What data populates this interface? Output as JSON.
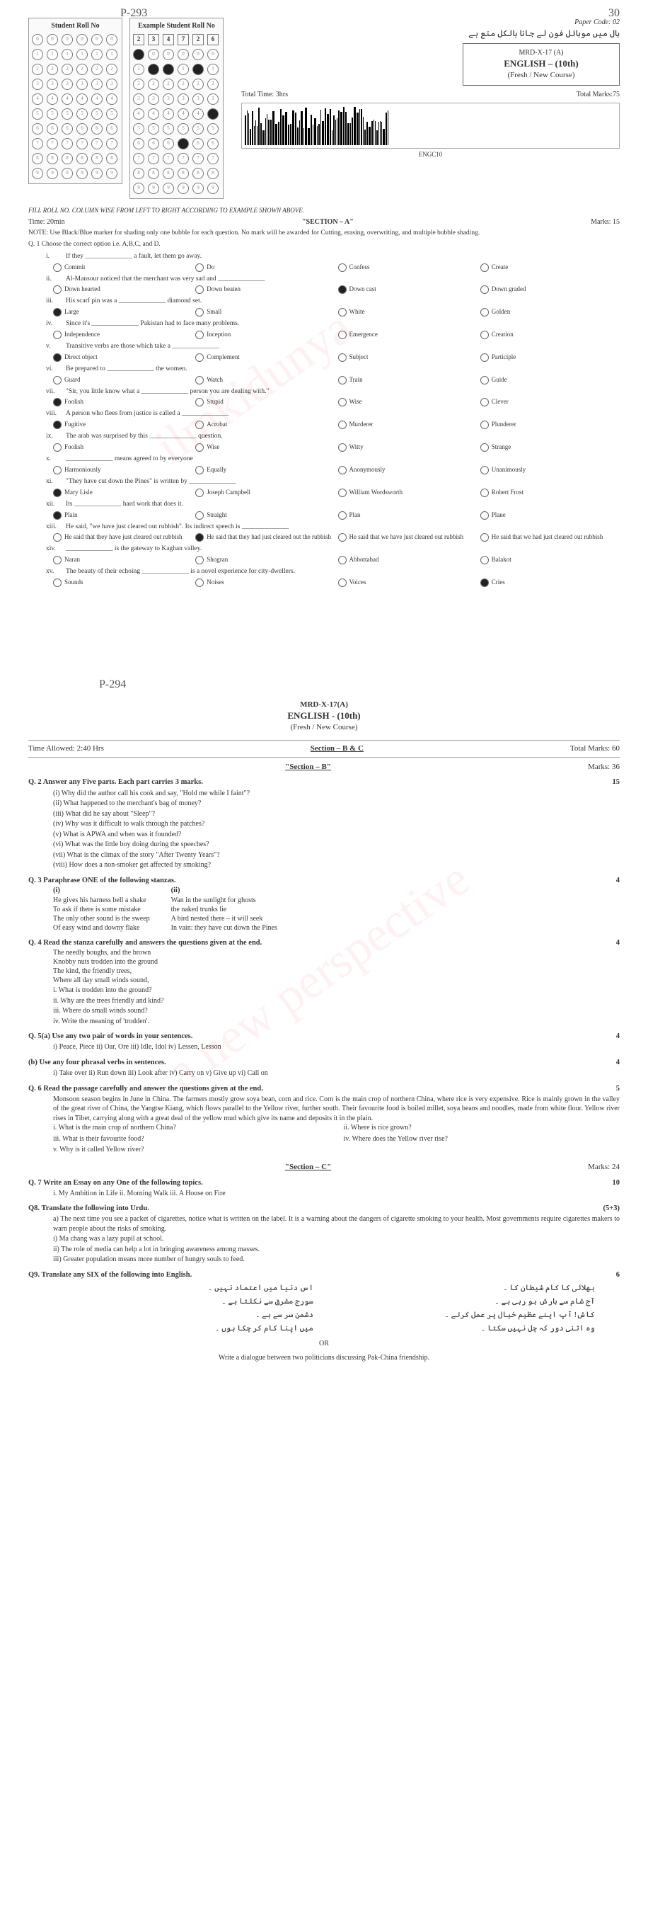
{
  "page1": {
    "p293": "P-293",
    "p30": "30",
    "student_roll_title": "Student Roll No",
    "example_roll_title": "Example Student Roll No",
    "example_nums": [
      "2",
      "3",
      "4",
      "7",
      "2",
      "6"
    ],
    "example_filled": [
      [
        1,
        0,
        0,
        0,
        0,
        0
      ],
      [
        0,
        1,
        1,
        0,
        1,
        0
      ],
      [
        0,
        0,
        0,
        0,
        0,
        0
      ],
      [
        0,
        0,
        0,
        0,
        0,
        0
      ],
      [
        0,
        0,
        0,
        0,
        0,
        1
      ],
      [
        0,
        0,
        0,
        0,
        0,
        0
      ],
      [
        0,
        0,
        0,
        1,
        0,
        0
      ],
      [
        0,
        0,
        0,
        0,
        0,
        0
      ],
      [
        0,
        0,
        0,
        0,
        0,
        0
      ],
      [
        0,
        0,
        0,
        0,
        0,
        0
      ]
    ],
    "paper_code": "Paper Code: 02",
    "urdu_top": "ہال میں موبائل فون لے جانا بالکل منع ہے",
    "mrd": "MRD-X-17 (A)",
    "subject": "ENGLISH – (10th)",
    "course": "(Fresh / New Course)",
    "total_time": "Total Time: 3hrs",
    "total_marks": "Total Marks:75",
    "barcode_label": "ENGC10",
    "fill_note": "FILL ROLL NO. COLUMN WISE FROM LEFT TO RIGHT ACCORDING TO EXAMPLE SHOWN ABOVE.",
    "time_a": "Time: 20min",
    "section_a": "\"SECTION – A\"",
    "marks_a": "Marks: 15",
    "note_text": "NOTE:   Use Black/Blue marker for shading only one bubble for each question. No mark will be awarded for Cutting, erasing, overwriting, and multiple bubble shading.",
    "q1": "Q. 1       Choose the correct option i.e. A,B,C, and D.",
    "items": [
      {
        "n": "i.",
        "t": "If they ______________ a fault, let them go away.",
        "o": [
          "Commit",
          "Do",
          "Confess",
          "Create"
        ],
        "f": -1
      },
      {
        "n": "ii.",
        "t": "Al-Mansour noticed that the merchant was very sad and ______________",
        "o": [
          "Down hearted",
          "Down beaten",
          "Down cast",
          "Down graded"
        ],
        "f": 2
      },
      {
        "n": "iii.",
        "t": "His scarf pin was a ______________ diamond set.",
        "o": [
          "Large",
          "Small",
          "White",
          "Golden"
        ],
        "f": 0
      },
      {
        "n": "iv.",
        "t": "Since it's ______________ Pakistan had to face many problems.",
        "o": [
          "Independence",
          "Inception",
          "Emergence",
          "Creation"
        ],
        "f": -1
      },
      {
        "n": "v.",
        "t": "Transitive verbs are those which take a ______________",
        "o": [
          "Direct object",
          "Complement",
          "Subject",
          "Participle"
        ],
        "f": 0
      },
      {
        "n": "vi.",
        "t": "Be prepared to ______________ the women.",
        "o": [
          "Guard",
          "Watch",
          "Train",
          "Guide"
        ],
        "f": -1
      },
      {
        "n": "vii.",
        "t": "\"Sir, you little know what a ______________ person you are dealing with.\"",
        "o": [
          "Foolish",
          "Stupid",
          "Wise",
          "Clever"
        ],
        "f": 0
      },
      {
        "n": "viii.",
        "t": "A person who flees from justice is called a ______________",
        "o": [
          "Fugitive",
          "Acrobat",
          "Murderer",
          "Plunderer"
        ],
        "f": 0
      },
      {
        "n": "ix.",
        "t": "The arab was surprised by this ______________ question.",
        "o": [
          "Foolish",
          "Wise",
          "Witty",
          "Strange"
        ],
        "f": -1
      },
      {
        "n": "x.",
        "t": "______________ means agreed to by everyone",
        "o": [
          "Harmoniously",
          "Equally",
          "Anonymously",
          "Unanimously"
        ],
        "f": -1
      },
      {
        "n": "xi.",
        "t": "\"They have cut down the Pines\" is written by ______________",
        "o": [
          "Mary Lisle",
          "Joseph Campbell",
          "William Wordsworth",
          "Robert Frost"
        ],
        "f": 0
      },
      {
        "n": "xii.",
        "t": "Its ______________ hard work that does it.",
        "o": [
          "Plain",
          "Straight",
          "Plan",
          "Plane"
        ],
        "f": 0
      },
      {
        "n": "xiii.",
        "t": "He said, \"we have just cleared out rubbish\". Its indirect speech is ______________",
        "o": [
          "He said that they have just cleared out rubbish",
          "He said that they had just cleared out the rubbish",
          "He said that we have just cleared out rubbish",
          "He said that we had just cleared out rubbish"
        ],
        "f": 1
      },
      {
        "n": "xiv.",
        "t": "______________ is the gateway to Kaghan valley.",
        "o": [
          "Naran",
          "Shogran",
          "Abbottabad",
          "Balakot"
        ],
        "f": -1
      },
      {
        "n": "xv.",
        "t": "The beauty of their echoing ______________ is a novel experience for city-dwellers.",
        "o": [
          "Sounds",
          "Noises",
          "Voices",
          "Cries"
        ],
        "f": 3
      }
    ]
  },
  "page2": {
    "p294": "P-294",
    "mrd": "MRD-X-17(A)",
    "subject": "ENGLISH - (10th)",
    "course": "(Fresh / New Course)",
    "time": "Time Allowed: 2:40 Hrs",
    "sec_bc": "Section – B & C",
    "tm": "Total Marks: 60",
    "sec_b": "\"Section – B\"",
    "marks_b": "Marks: 36",
    "q2": {
      "h": "Q. 2    Answer any Five parts. Each part carries 3 marks.",
      "m": "15",
      "parts": [
        "(i)    Why did the author call his cook and say, \"Hold me while I faint\"?",
        "(ii)   What happened to the merchant's bag of money?",
        "(iii)   What did he say about \"Sleep\"?",
        "(iv)   Why was it difficult to walk through the patches?",
        "(v)    What is APWA and when was it founded?",
        "(vi)   What was the little boy doing during the speeches?",
        "(vii)  What is the climax of the story \"After Twenty Years\"?",
        "(viii) How does a non-smoker get affected by smoking?"
      ]
    },
    "q3": {
      "h": "Q. 3    Paraphrase ONE of the following stanzas.",
      "m": "4",
      "s1": [
        "He gives his harness bell a shake",
        "To ask if there is some mistake",
        "The only other sound is the sweep",
        "Of easy wind and downy flake"
      ],
      "s2": [
        "Wan in the sunlight for ghosts",
        "the naked trunks lie",
        "A bird nested there – it will seek",
        "In vain: they have cut down the Pines"
      ]
    },
    "q4": {
      "h": "Q. 4    Read the stanza carefully and answers the questions given at the end.",
      "m": "4",
      "stanza": [
        "The needly boughs, and the brown",
        "Knobby nuts trodden into the ground",
        "The kind, the friendly trees,",
        "Where all day small winds sound,"
      ],
      "qs": [
        "i.     What is trodden into the ground?",
        "ii.    Why are the trees friendly and kind?",
        "iii.   Where do small winds sound?",
        "iv.    Write the meaning of 'trodden'."
      ]
    },
    "q5a": {
      "h": "Q. 5(a) Use any two pair of words in your sentences.",
      "m": "4",
      "opts": "i) Peace, Piece    ii) Oar, Ore    iii) Idle, Idol    iv) Lessen, Lesson"
    },
    "q5b": {
      "h": "     (b) Use any four phrasal verbs in sentences.",
      "m": "4",
      "opts": "i) Take over    ii) Run down    iii) Look after    iv) Carry on    v) Give up    vi) Call on"
    },
    "q6": {
      "h": "Q. 6    Read the passage carefully and answer the questions given at the end.",
      "m": "5",
      "p": "Monsoon season begins in June in China. The farmers mostly grow soya bean, corn and rice. Corn is the main crop of northern China, where rice is very expensive. Rice is mainly grown in the valley of the great river of China, the Yangtse Kiang, which flows parallel to the Yellow river, further south. Their favourite food is boiled millet, soya beans and noodles, made from white flour. Yellow river rises in Tibet, carrying along with a great deal of the yellow mud which give its name and deposits it in the plain.",
      "qs": [
        "i. What is the main crop of northern China?",
        "ii. Where is rice grown?",
        "iii. What is their favourite food?",
        "iv. Where does the Yellow river rise?",
        "v. Why is it called Yellow river?"
      ]
    },
    "sec_c": "\"Section – C\"",
    "marks_c": "Marks: 24",
    "q7": {
      "h": "Q. 7    Write an Essay on any One of the following topics.",
      "m": "10",
      "t": "i. My Ambition in Life        ii. Morning Walk        iii. A House on Fire"
    },
    "q8": {
      "h": "Q8.    Translate the following into Urdu.",
      "m": "(5+3)",
      "a": "a)    The next time you see a packet of cigarettes, notice what is written on the label. It is a warning  about the dangers of cigarette smoking to your health. Most governments  require cigarettes makers to warn people about the risks of smoking.",
      "b": [
        "i)  Ma chang was a lazy pupil at school.",
        "ii) The role of media can help a lot in bringing awareness among masses.",
        "iii) Greater population means more number of hungry souls to feed."
      ]
    },
    "q9": {
      "h": "Q9.    Translate any SIX of the following into English.",
      "m": "6",
      "urdu": [
        "بھلائی کا کام شیطان کا",
        "اس دنیا میں اعتماد نہیں",
        "آج شام سے بارش ہو رہی ہے",
        "سورج مشرق سے نکلتا ہے",
        "کاش! آپ اپنے عظیم خیال پر عمل کرتے",
        "دشمن سر سے ہے",
        "وہ اتنی دور کہ چل نہیں سکتا",
        "میں اپنا کام کر چکا ہوں"
      ]
    },
    "or": "OR",
    "or_txt": "Write a dialogue between two politicians discussing Pak-China friendship."
  }
}
